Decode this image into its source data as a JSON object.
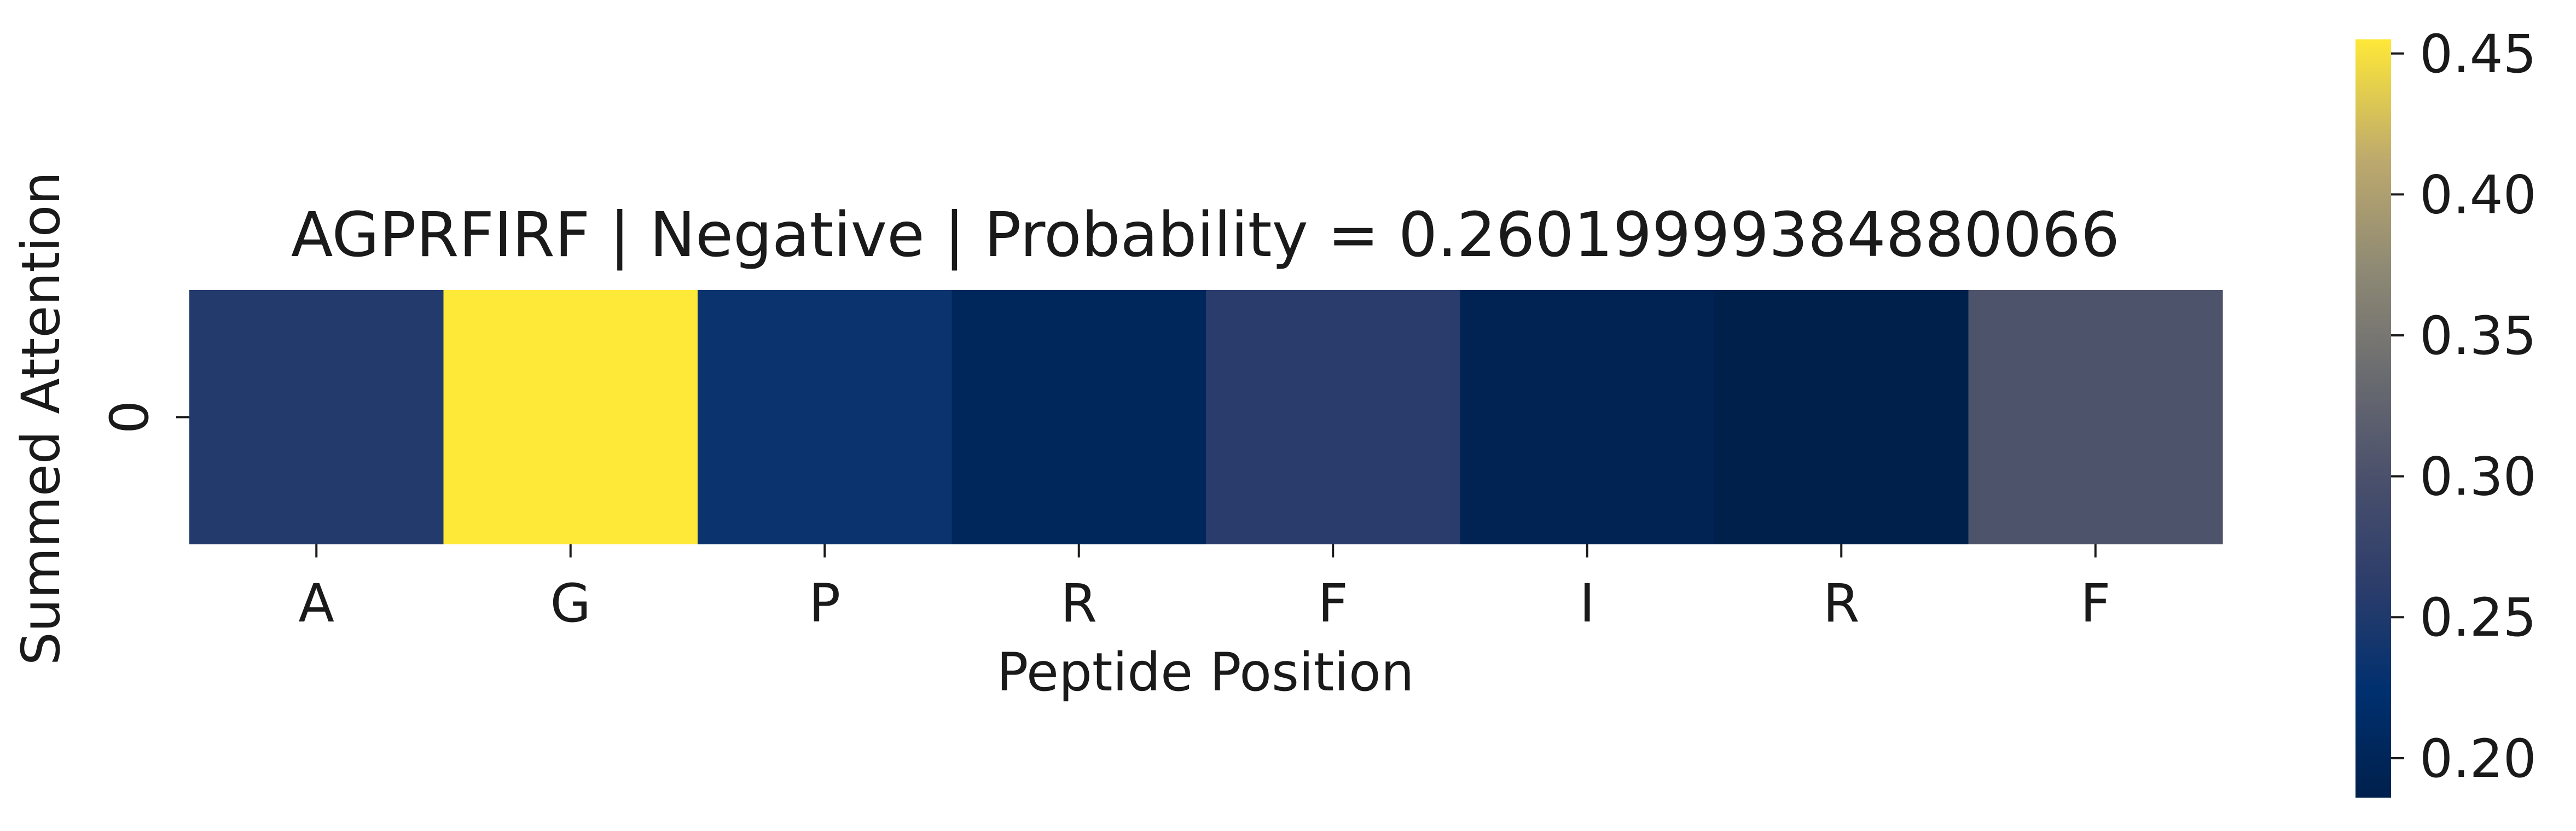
{
  "chart_data": {
    "type": "heatmap",
    "title": "AGPRFIRF | Negative | Probability = 0.26019999384880066",
    "xlabel": "Peptide Position",
    "ylabel": "Summed Attention",
    "categories": [
      "A",
      "G",
      "P",
      "R",
      "F",
      "I",
      "R",
      "F"
    ],
    "row_labels": [
      "0"
    ],
    "values": [
      [
        0.253,
        0.455,
        0.233,
        0.202,
        0.259,
        0.193,
        0.186,
        0.303
      ]
    ],
    "colormap": "cividis",
    "colorbar": {
      "range": [
        0.186,
        0.455
      ],
      "ticks": [
        0.2,
        0.25,
        0.3,
        0.35,
        0.4,
        0.45
      ],
      "tick_labels": [
        "0.20",
        "0.25",
        "0.30",
        "0.35",
        "0.40",
        "0.45"
      ]
    },
    "grid": false
  }
}
